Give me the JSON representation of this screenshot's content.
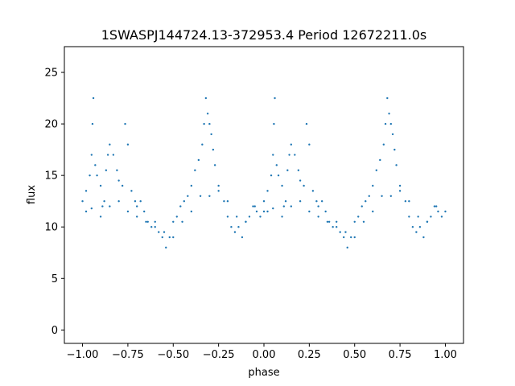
{
  "chart_data": {
    "type": "scatter",
    "title": "1SWASPJ144724.13-372953.4 Period 12672211.0s",
    "xlabel": "phase",
    "ylabel": "flux",
    "xlim": [
      -1.1,
      1.1
    ],
    "ylim": [
      -1.3,
      27.5
    ],
    "xticks": [
      -1.0,
      -0.75,
      -0.5,
      -0.25,
      0.0,
      0.25,
      0.5,
      0.75,
      1.0
    ],
    "xtick_labels": [
      "−1.00",
      "−0.75",
      "−0.50",
      "−0.25",
      "0.00",
      "0.25",
      "0.50",
      "0.75",
      "1.00"
    ],
    "yticks": [
      0,
      5,
      10,
      15,
      20,
      25
    ],
    "ytick_labels": [
      "0",
      "5",
      "10",
      "15",
      "20",
      "25"
    ],
    "grid": false,
    "series": [
      {
        "color": "#1f77b4",
        "marker_size": "tiny",
        "repeat_period": 1.0,
        "x": [
          0.0,
          0.02,
          0.04,
          0.05,
          0.055,
          0.06,
          0.07,
          0.08,
          0.1,
          0.11,
          0.12,
          0.13,
          0.14,
          0.15,
          0.17,
          0.19,
          0.2,
          0.22,
          0.235,
          0.25,
          0.27,
          0.29,
          0.3,
          0.32,
          0.34,
          0.36,
          0.38,
          0.4,
          0.42,
          0.44,
          0.46,
          0.48,
          0.5,
          0.52,
          0.54,
          0.56,
          0.58,
          0.6,
          0.62,
          0.64,
          0.66,
          0.67,
          0.68,
          0.69,
          0.7,
          0.71,
          0.72,
          0.73,
          0.75,
          0.78,
          0.8,
          0.82,
          0.84,
          0.86,
          0.88,
          0.9,
          0.92,
          0.94,
          0.96,
          0.98,
          1.0,
          0.02,
          0.05,
          0.1,
          0.15,
          0.2,
          0.25,
          0.3,
          0.35,
          0.4,
          0.45,
          0.5,
          0.55,
          0.6,
          0.65,
          0.7,
          0.75,
          0.8,
          0.85,
          0.9,
          0.95
        ],
        "y": [
          12.5,
          13.5,
          15.0,
          17.0,
          20.0,
          22.5,
          16.0,
          15.0,
          14.0,
          12.0,
          12.5,
          15.5,
          17.0,
          18.0,
          17.0,
          15.5,
          14.5,
          14.0,
          20.0,
          18.0,
          13.5,
          12.5,
          12.0,
          12.5,
          11.5,
          10.5,
          10.0,
          10.5,
          9.5,
          9.0,
          8.0,
          9.0,
          10.5,
          11.0,
          12.0,
          12.5,
          13.0,
          14.0,
          15.5,
          16.5,
          18.0,
          20.0,
          22.5,
          21.0,
          20.0,
          19.0,
          17.5,
          16.0,
          14.0,
          12.5,
          11.0,
          10.0,
          9.5,
          10.0,
          9.0,
          10.5,
          11.0,
          12.0,
          11.5,
          11.0,
          11.5,
          11.5,
          11.8,
          11.0,
          12.0,
          12.5,
          11.5,
          11.0,
          10.5,
          10.0,
          9.5,
          9.0,
          10.5,
          11.5,
          13.0,
          13.0,
          13.5,
          12.5,
          11.0,
          10.5,
          12.0
        ]
      }
    ]
  }
}
